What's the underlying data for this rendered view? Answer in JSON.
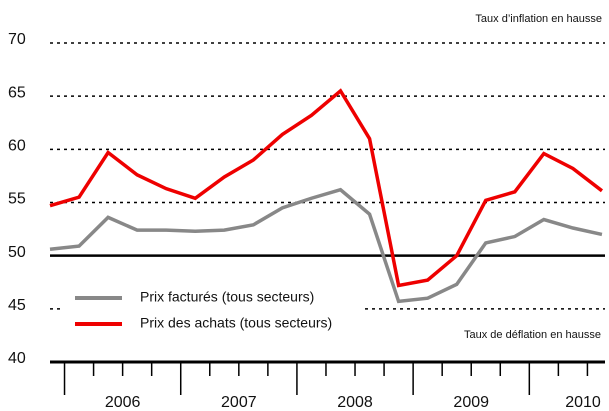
{
  "chart_data": {
    "type": "line",
    "year_labels": [
      "2006",
      "2007",
      "2008",
      "2009",
      "2010"
    ],
    "series": [
      {
        "name": "Prix facturés (tous secteurs)",
        "color": "#888888",
        "values": [
          50.6,
          50.9,
          53.6,
          52.4,
          52.4,
          52.3,
          52.4,
          52.9,
          54.5,
          55.4,
          56.2,
          53.9,
          45.7,
          46.0,
          47.3,
          51.2,
          51.8,
          53.4,
          52.6,
          52.0
        ]
      },
      {
        "name": "Prix des achats (tous secteurs)",
        "color": "#ee0000",
        "values": [
          54.7,
          55.5,
          59.7,
          57.6,
          56.3,
          55.4,
          57.4,
          59.0,
          61.4,
          63.2,
          65.5,
          61.0,
          47.2,
          47.7,
          50.0,
          55.2,
          56.0,
          59.6,
          58.2,
          56.1
        ]
      }
    ],
    "ylim": [
      40,
      70
    ],
    "yticks": [
      40,
      45,
      50,
      55,
      60,
      65,
      70
    ],
    "reference_line": 50,
    "grid": true,
    "annotations": [
      "Taux d’inflation en hausse",
      "Taux de déflation en hausse"
    ]
  }
}
